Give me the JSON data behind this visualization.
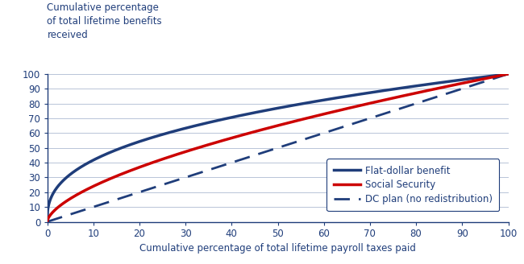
{
  "title_ylabel": "Cumulative percentage\nof total lifetime benefits\nreceived",
  "xlabel": "Cumulative percentage of total lifetime payroll taxes paid",
  "xlim": [
    0,
    100
  ],
  "ylim": [
    0,
    100
  ],
  "xticks": [
    0,
    10,
    20,
    30,
    40,
    50,
    60,
    70,
    80,
    90,
    100
  ],
  "yticks": [
    0,
    10,
    20,
    30,
    40,
    50,
    60,
    70,
    80,
    90,
    100
  ],
  "flat_dollar_color": "#1f3d7a",
  "social_security_color": "#cc0000",
  "dc_plan_color": "#1f3d7a",
  "background_color": "#ffffff",
  "grid_color": "#b8c4d8",
  "legend_labels": [
    "Flat-dollar benefit",
    "Social Security",
    "DC plan (no redistribution)"
  ],
  "label_fontsize": 8.5,
  "tick_fontsize": 8.5,
  "ylabel_fontsize": 8.5,
  "line_width": 2.0,
  "flat_dollar_exponent": 0.38,
  "social_security_exponent": 0.62,
  "dc_plan_exponent": 1.0
}
